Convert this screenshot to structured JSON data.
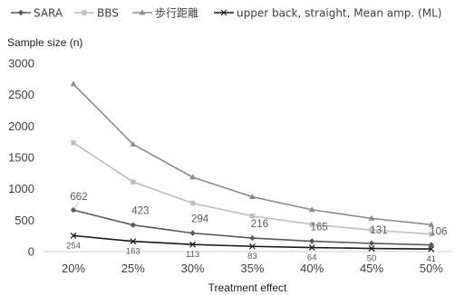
{
  "chart_data": {
    "type": "line",
    "title": "",
    "xlabel": "Treatment effect",
    "ylabel": "Sample size (n)",
    "categories": [
      "20%",
      "25%",
      "30%",
      "35%",
      "40%",
      "45%",
      "50%"
    ],
    "ylim": [
      0,
      3000
    ],
    "yticks": [
      0,
      500,
      1000,
      1500,
      2000,
      2500,
      3000
    ],
    "grid": false,
    "legend_position": "top",
    "series": [
      {
        "name": "SARA",
        "values": [
          662,
          423,
          294,
          216,
          165,
          131,
          106
        ],
        "color": "#595959",
        "marker": "diamond",
        "labels": [
          "662",
          "423",
          "294",
          "216",
          "165",
          "131",
          "106"
        ]
      },
      {
        "name": "BBS",
        "values": [
          1735,
          1110,
          771,
          567,
          434,
          343,
          278
        ],
        "color": "#bfbfbf",
        "marker": "square"
      },
      {
        "name": "歩行距離",
        "values": [
          2670,
          1710,
          1185,
          872,
          667,
          528,
          428
        ],
        "color": "#8c8c8c",
        "marker": "triangle"
      },
      {
        "name": "upper back, straight, Mean amp. (ML)",
        "values": [
          254,
          163,
          113,
          83,
          64,
          50,
          41
        ],
        "color": "#1a1a1a",
        "marker": "cross",
        "labels": [
          "254",
          "163",
          "113",
          "83",
          "64",
          "50",
          "41"
        ]
      }
    ]
  }
}
